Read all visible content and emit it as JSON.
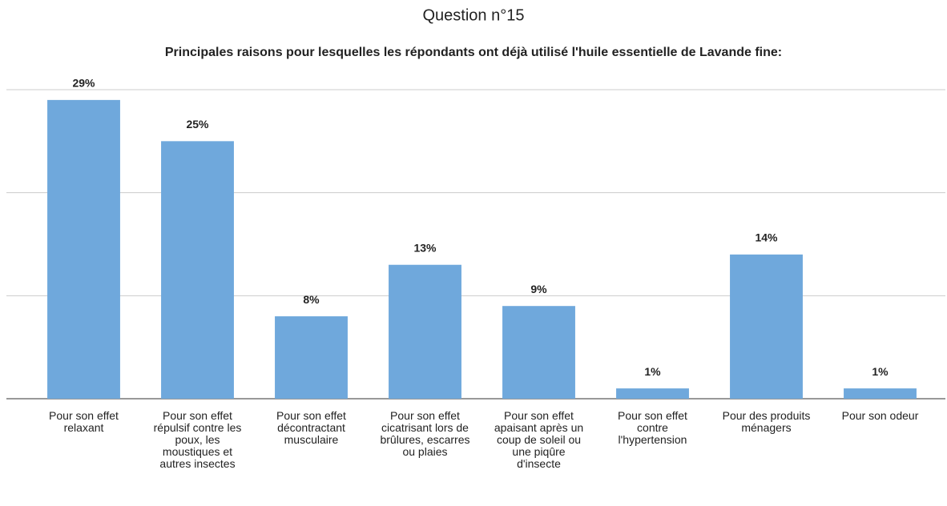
{
  "chart_data": {
    "type": "bar",
    "title": "Question n°15",
    "subtitle": "Principales raisons pour lesquelles les répondants ont déjà utilisé l'huile essentielle de Lavande fine:",
    "categories": [
      "Pour son effet relaxant",
      "Pour son effet répulsif contre les poux, les moustiques et autres insectes",
      "Pour son effet décontractant musculaire",
      "Pour son effet cicatrisant lors de brûlures, escarres ou plaies",
      "Pour son effet apaisant après un coup de soleil ou une piqûre d'insecte",
      "Pour son effet contre l'hypertension",
      "Pour des produits ménagers",
      "Pour son odeur"
    ],
    "values": [
      29,
      25,
      8,
      13,
      9,
      1,
      14,
      1
    ],
    "value_labels": [
      "29%",
      "25%",
      "8%",
      "13%",
      "9%",
      "1%",
      "14%",
      "1%"
    ],
    "color": "#6fa8dc",
    "ylim": [
      0,
      30
    ],
    "yticks": [
      0,
      10,
      20,
      30
    ],
    "grid": true
  }
}
